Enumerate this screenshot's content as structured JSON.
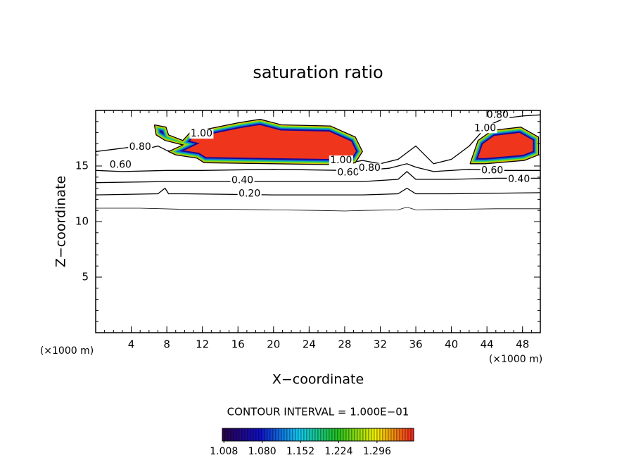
{
  "chart_data": {
    "type": "contour",
    "title": "saturation ratio",
    "x_label": "X−coordinate",
    "y_label": "Z−coordinate",
    "x_unit": "(×1000 m)",
    "y_unit": "(×1000 m)",
    "xlim": [
      0,
      50
    ],
    "ylim": [
      0,
      20
    ],
    "xticks": [
      4,
      8,
      12,
      16,
      20,
      24,
      28,
      32,
      36,
      40,
      44,
      48
    ],
    "yticks": [
      5,
      10,
      15
    ],
    "contour_interval": "CONTOUR INTERVAL = 1.000E−01",
    "contours": [
      {
        "level": 0.1,
        "x": [
          0,
          5,
          10,
          15,
          20,
          25,
          28,
          30,
          34,
          35,
          36,
          40,
          45,
          50
        ],
        "y": [
          11.2,
          11.2,
          11.1,
          11.1,
          11.05,
          11.0,
          10.95,
          11.0,
          11.05,
          11.3,
          11.05,
          11.1,
          11.15,
          11.15
        ]
      },
      {
        "level": 0.2,
        "label": "0.20",
        "x": [
          0,
          7,
          7.8,
          8.2,
          10,
          20,
          30,
          34,
          35,
          36,
          40,
          50
        ],
        "y": [
          12.4,
          12.5,
          13.0,
          12.5,
          12.5,
          12.4,
          12.4,
          12.5,
          13.0,
          12.5,
          12.5,
          12.6
        ]
      },
      {
        "level": 0.4,
        "label": "0.40",
        "x": [
          0,
          8,
          10,
          20,
          30,
          34,
          35,
          36,
          40,
          45,
          50
        ],
        "y": [
          13.5,
          13.6,
          13.6,
          13.6,
          13.6,
          13.8,
          14.5,
          13.8,
          13.8,
          13.9,
          13.9
        ]
      },
      {
        "level": 0.6,
        "label": "0.60",
        "x": [
          0,
          3,
          8,
          12,
          20,
          28,
          30,
          33,
          35,
          36,
          38,
          42,
          45,
          50
        ],
        "y": [
          14.6,
          14.5,
          14.6,
          14.6,
          14.7,
          14.6,
          14.6,
          14.8,
          15.2,
          14.9,
          14.5,
          14.7,
          14.6,
          14.6
        ]
      },
      {
        "level": 0.8,
        "label": "0.80",
        "x": [
          0,
          2,
          4,
          6,
          7,
          8,
          12,
          20,
          28,
          30,
          32,
          34,
          36,
          38,
          40,
          42,
          44,
          46,
          48,
          50
        ],
        "y": [
          16.3,
          16.5,
          16.7,
          16.6,
          16.8,
          16.4,
          15.7,
          15.3,
          15.2,
          15.5,
          15.2,
          15.6,
          16.8,
          15.2,
          15.6,
          16.8,
          18.6,
          19.3,
          19.5,
          19.6
        ]
      },
      {
        "level": 1.0,
        "label": "1.00",
        "x": [
          6.6,
          7.9,
          8.2,
          9.8,
          10.6,
          16.1,
          18.5,
          20.9,
          26.4,
          29.2,
          30.0,
          29.2,
          28.0,
          12.2,
          11.4,
          9.0,
          8.2,
          9.8,
          7.8,
          6.8,
          6.6,
          null,
          42.1,
          43.0,
          44.6,
          47.8,
          49.8,
          49.8,
          48.2,
          43.8,
          42.1
        ],
        "y": [
          18.7,
          18.5,
          17.8,
          17.3,
          18.0,
          18.9,
          19.2,
          18.7,
          18.6,
          17.6,
          16.3,
          15.3,
          15.1,
          15.3,
          15.7,
          16.0,
          16.3,
          16.9,
          17.3,
          17.8,
          18.7,
          null,
          15.2,
          17.3,
          18.2,
          18.5,
          17.6,
          16.0,
          15.5,
          15.2,
          15.2
        ]
      }
    ],
    "colorbar": {
      "lim": [
        1.005,
        1.365
      ],
      "colors": [
        "#2a0048",
        "#1010c8",
        "#10c8f0",
        "#20c020",
        "#f0f000",
        "#f02020"
      ],
      "ticks": [
        1.008,
        {
          "value": 1.08,
          "label": "1.080"
        },
        {
          "value": 1.152,
          "label": "1.152"
        },
        {
          "value": 1.224,
          "label": "1.224"
        },
        {
          "value": 1.296,
          "label": "1.296"
        }
      ]
    }
  }
}
